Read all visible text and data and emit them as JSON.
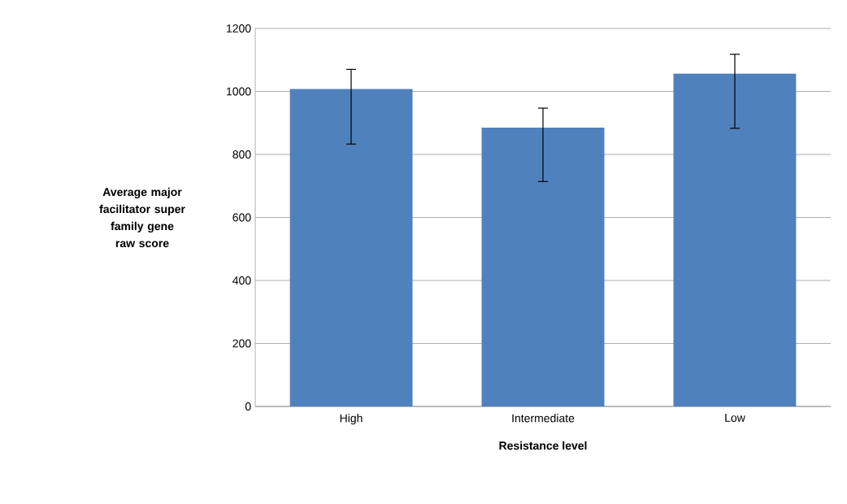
{
  "chart_data": {
    "type": "bar",
    "xlabel": "Resistance level",
    "ylabel": "Average major facilitator super family gene raw score",
    "categories": [
      "High",
      "Intermediate",
      "Low"
    ],
    "values": [
      1008,
      885,
      1057
    ],
    "errors": [
      [
        833,
        1070
      ],
      [
        714,
        947
      ],
      [
        883,
        1118
      ]
    ],
    "color": "#4f81bd",
    "ylim": [
      0,
      1200
    ],
    "yticks": [
      0,
      200,
      400,
      600,
      800,
      1000,
      1200
    ],
    "grid": "y"
  }
}
